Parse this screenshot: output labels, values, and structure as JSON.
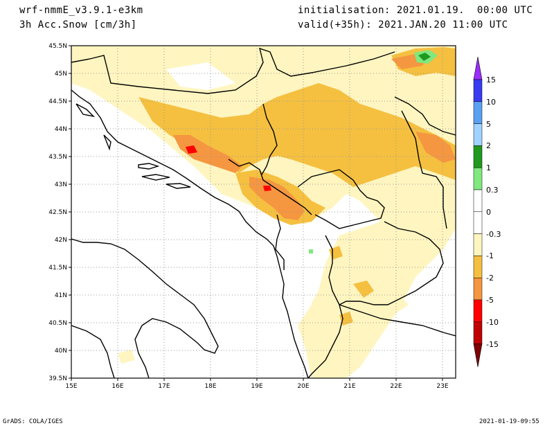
{
  "header": {
    "model": "wrf-nmmE_v3.9.1-e3km",
    "variable": "3h Acc.Snow [cm/3h]",
    "init": "initialisation: 2021.01.19.  00:00 UTC",
    "valid": "valid(+35h): 2021.JAN.20 11:00 UTC"
  },
  "footer": {
    "left": "GrADS: COLA/IGES",
    "right": "2021-01-19-09:55"
  },
  "map": {
    "lat_labels": [
      "45.5N",
      "45N",
      "44.5N",
      "44N",
      "43.5N",
      "43N",
      "42.5N",
      "42N",
      "41.5N",
      "41N",
      "40.5N",
      "40N",
      "39.5N"
    ],
    "lon_labels": [
      "15E",
      "16E",
      "17E",
      "18E",
      "19E",
      "20E",
      "21E",
      "22E",
      "23E"
    ]
  },
  "legend": {
    "labels": [
      "15",
      "10",
      "5",
      "2",
      "1",
      "0.3",
      "0",
      "-0.3",
      "-1",
      "-2",
      "-5",
      "-10",
      "-15"
    ],
    "colors": [
      "#9b2cff",
      "#3a3af0",
      "#5aa0f0",
      "#a0d2ff",
      "#1f9a1f",
      "#7fe87f",
      "#ffffff",
      "#ffffff",
      "#fff5c0",
      "#f5c040",
      "#f59640",
      "#ff0000",
      "#c00000",
      "#800000"
    ]
  }
}
